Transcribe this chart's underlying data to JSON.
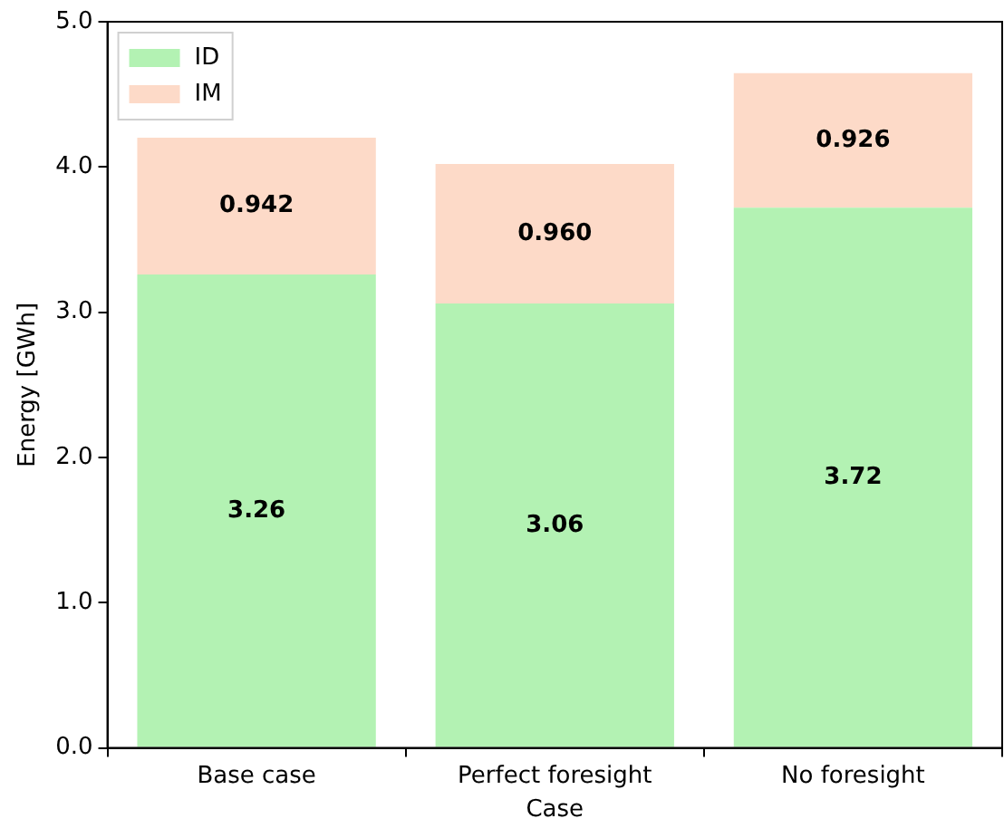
{
  "chart_data": {
    "type": "bar",
    "stacked": true,
    "xlabel": "Case",
    "ylabel": "Energy [GWh]",
    "categories": [
      "Base case",
      "Perfect foresight",
      "No foresight"
    ],
    "series": [
      {
        "name": "ID",
        "color": "#b3f2b3",
        "values": [
          3.26,
          3.06,
          3.72
        ],
        "value_labels": [
          "3.26",
          "3.06",
          "3.72"
        ]
      },
      {
        "name": "IM",
        "color": "#fddac8",
        "values": [
          0.942,
          0.96,
          0.926
        ],
        "value_labels": [
          "0.942",
          "0.960",
          "0.926"
        ]
      }
    ],
    "ylim": [
      0,
      5
    ],
    "yticks": [
      {
        "value": 0,
        "label": "0.0"
      },
      {
        "value": 1,
        "label": "1.0"
      },
      {
        "value": 2,
        "label": "2.0"
      },
      {
        "value": 3,
        "label": "3.0"
      },
      {
        "value": 4,
        "label": "4.0"
      },
      {
        "value": 5,
        "label": "5.0"
      }
    ],
    "legend": "top left",
    "grid": false
  }
}
